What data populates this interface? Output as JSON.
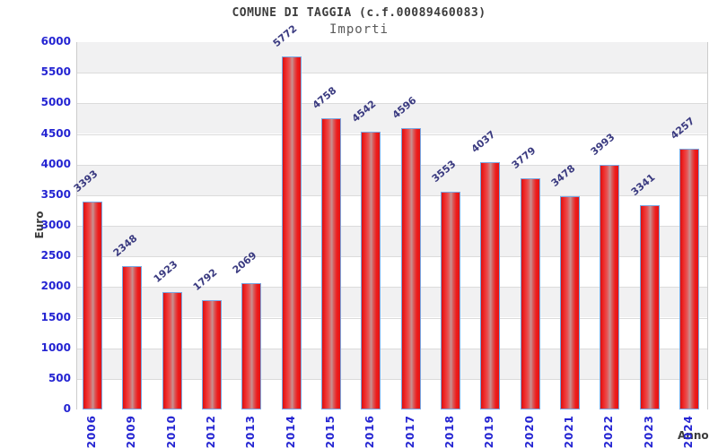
{
  "header": {
    "title": "COMUNE DI TAGGIA (c.f.00089460083)",
    "subtitle": "Importi"
  },
  "chart_data": {
    "type": "bar",
    "title": "COMUNE DI TAGGIA (c.f.00089460083)",
    "subtitle": "Importi",
    "xlabel": "Anno",
    "ylabel": "Euro",
    "categories": [
      "2006",
      "2009",
      "2010",
      "2012",
      "2013",
      "2014",
      "2015",
      "2016",
      "2017",
      "2018",
      "2019",
      "2020",
      "2021",
      "2022",
      "2023",
      "2024"
    ],
    "values": [
      3393,
      2348,
      1923,
      1792,
      2069,
      5772,
      4758,
      4542,
      4596,
      3553,
      4037,
      3779,
      3478,
      3993,
      3341,
      4257
    ],
    "ylim": [
      0,
      6000
    ],
    "ytick_step": 500,
    "yticks": [
      0,
      500,
      1000,
      1500,
      2000,
      2500,
      3000,
      3500,
      4000,
      4500,
      5000,
      5500,
      6000
    ],
    "grid": "horizontal-bands-alternating",
    "legend": "none",
    "colors": {
      "bar_fill": "#e81717",
      "bar_highlight": "#c89191",
      "bar_border": "#79a7e2",
      "tick_label": "#2424d2",
      "value_label": "#3a3a80",
      "band_gray": "#f1f1f2",
      "gridline": "#dbdbdb",
      "plot_border": "#cccccc",
      "title_text": "#3c3c3c"
    }
  }
}
